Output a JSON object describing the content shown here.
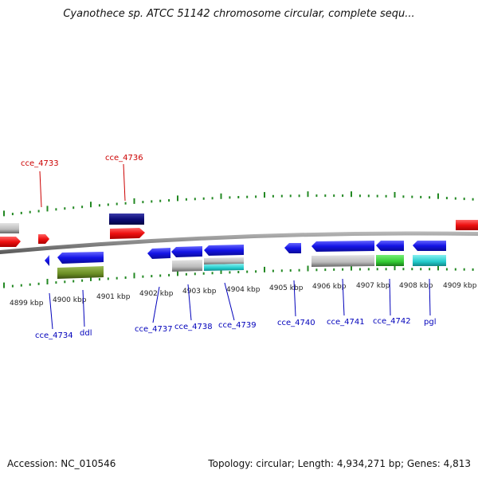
{
  "title": "Cyanothece sp. ATCC 51142 chromosome circular, complete sequ...",
  "footer": {
    "accession": "Accession: NC_010546",
    "topology": "Topology: circular; Length: 4,934,271 bp; Genes: 4,813"
  },
  "colors": {
    "red": "#ee1111",
    "blue": "#1414e6",
    "navy": "#0c0c78",
    "gray": "#bbbbbb",
    "olive": "#6b8e23",
    "green": "#33cc33",
    "cyan": "#22cccc",
    "tick": "#228822",
    "backbone": "#888888"
  },
  "kbp_labels": [
    "4899 kbp",
    "4900 kbp",
    "4901 kbp",
    "4902 kbp",
    "4903 kbp",
    "4904 kbp",
    "4905 kbp",
    "4906 kbp",
    "4907 kbp",
    "4908 kbp",
    "4909 kbp"
  ],
  "gene_labels_top": [
    "cce_4733",
    "cce_4736"
  ],
  "gene_labels_bottom": [
    "cce_4734",
    "ddl",
    "cce_4737",
    "cce_4738",
    "cce_4739",
    "cce_4740",
    "cce_4741",
    "cce_4742",
    "pgl"
  ]
}
